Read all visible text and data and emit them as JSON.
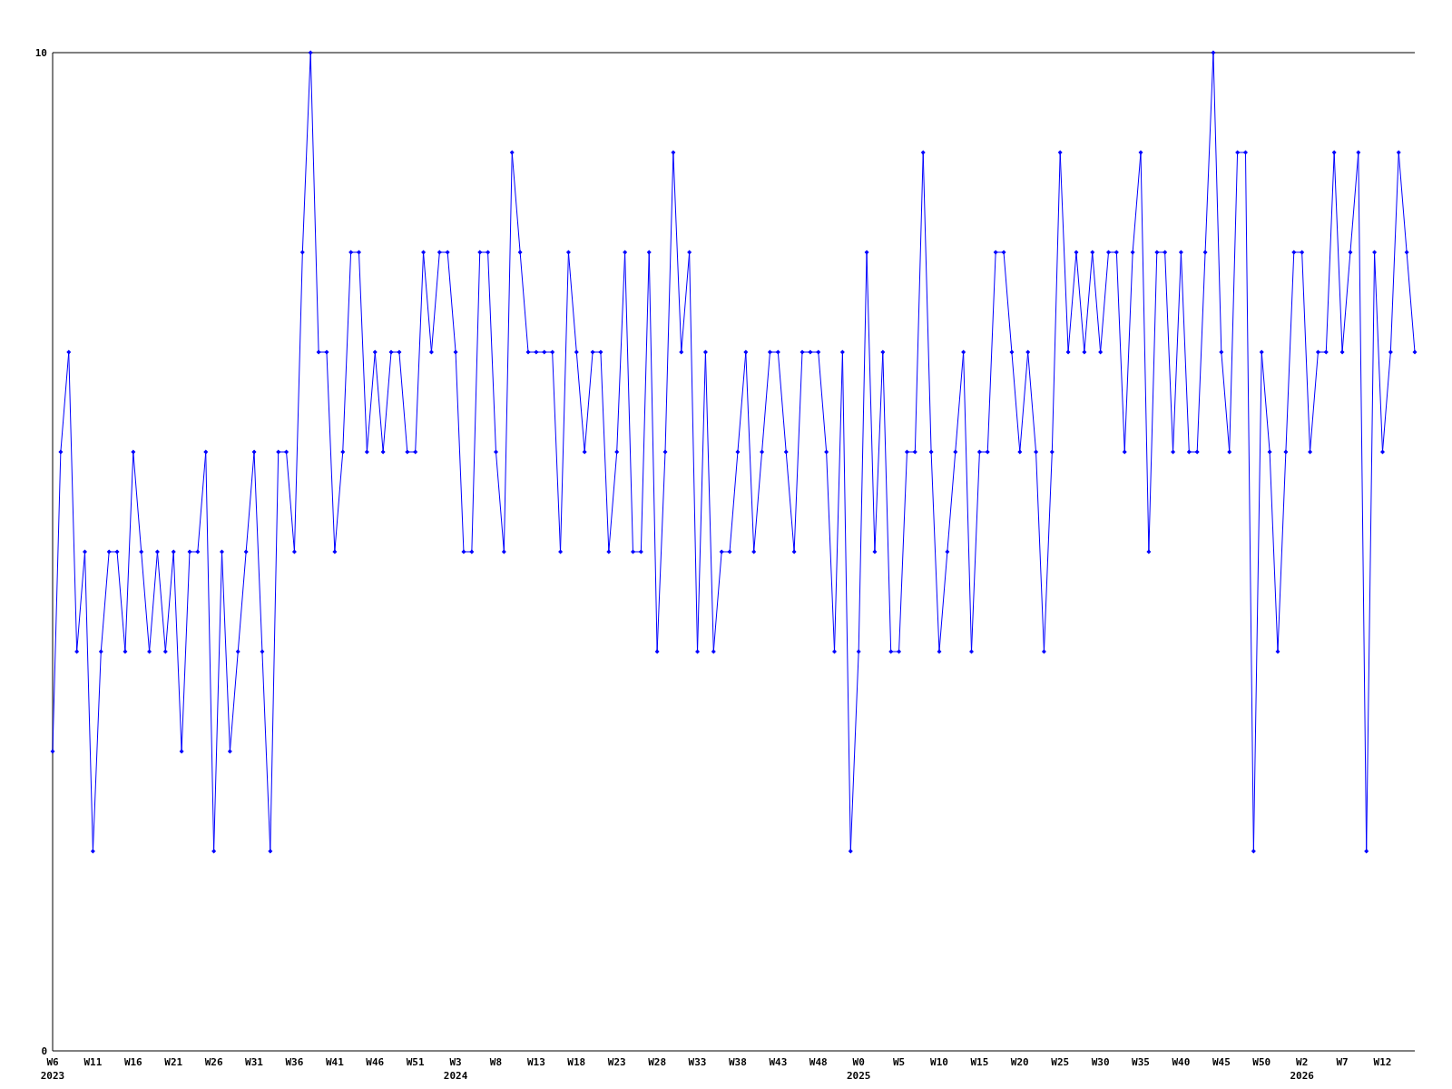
{
  "chart_data": {
    "type": "line",
    "categories": [
      "W6\n2023",
      null,
      null,
      null,
      null,
      "W11",
      null,
      null,
      null,
      null,
      "W16",
      null,
      null,
      null,
      null,
      "W21",
      null,
      null,
      null,
      null,
      "W26",
      null,
      null,
      null,
      null,
      "W31",
      null,
      null,
      null,
      null,
      "W36",
      null,
      null,
      null,
      null,
      "W41",
      null,
      null,
      null,
      null,
      "W46",
      null,
      null,
      null,
      null,
      "W51",
      null,
      null,
      null,
      null,
      "W3\n2024",
      null,
      null,
      null,
      null,
      "W8",
      null,
      null,
      null,
      null,
      "W13",
      null,
      null,
      null,
      null,
      "W18",
      null,
      null,
      null,
      null,
      "W23",
      null,
      null,
      null,
      null,
      "W28",
      null,
      null,
      null,
      null,
      "W33",
      null,
      null,
      null,
      null,
      "W38",
      null,
      null,
      null,
      null,
      "W43",
      null,
      null,
      null,
      null,
      "W48",
      null,
      null,
      null,
      null,
      "W0\n2025",
      null,
      null,
      null,
      null,
      "W5",
      null,
      null,
      null,
      null,
      "W10",
      null,
      null,
      null,
      null,
      "W15",
      null,
      null,
      null,
      null,
      "W20",
      null,
      null,
      null,
      null,
      "W25",
      null,
      null,
      null,
      null,
      "W30",
      null,
      null,
      null,
      null,
      "W35",
      null,
      null,
      null,
      null,
      "W40",
      null,
      null,
      null,
      null,
      "W45",
      null,
      null,
      null,
      null,
      "W50",
      null,
      null,
      null,
      null,
      "W2\n2026",
      null,
      null,
      null,
      null,
      "W7",
      null,
      null,
      null,
      null,
      "W12",
      null,
      null,
      null,
      null
    ],
    "series": [
      {
        "color": "#0000ff",
        "values": [
          3,
          6,
          7,
          4,
          5,
          2,
          4,
          5,
          5,
          4,
          6,
          5,
          4,
          5,
          4,
          5,
          3,
          5,
          5,
          6,
          2,
          5,
          3,
          4,
          5,
          6,
          4,
          2,
          6,
          6,
          5,
          8,
          10,
          7,
          7,
          5,
          6,
          8,
          8,
          6,
          7,
          6,
          7,
          7,
          6,
          6,
          8,
          7,
          8,
          8,
          7,
          5,
          5,
          8,
          8,
          6,
          5,
          9,
          8,
          7,
          7,
          7,
          7,
          5,
          8,
          7,
          6,
          7,
          7,
          5,
          6,
          8,
          5,
          5,
          8,
          4,
          6,
          9,
          7,
          8,
          4,
          7,
          4,
          5,
          5,
          6,
          7,
          5,
          6,
          7,
          7,
          6,
          5,
          7,
          7,
          7,
          6,
          4,
          7,
          2,
          4,
          8,
          5,
          7,
          4,
          4,
          6,
          6,
          9,
          6,
          4,
          5,
          6,
          7,
          4,
          6,
          6,
          8,
          8,
          7,
          6,
          7,
          6,
          4,
          6,
          9,
          7,
          8,
          7,
          8,
          7,
          8,
          8,
          6,
          8,
          9,
          5,
          8,
          8,
          6,
          8,
          6,
          6,
          8,
          10,
          7,
          6,
          9,
          9,
          2,
          7,
          6,
          4,
          6,
          8,
          8,
          6,
          7,
          7,
          9,
          7,
          8,
          9,
          2,
          8,
          6,
          7,
          9,
          8,
          7
        ]
      }
    ],
    "ylim": [
      0,
      10
    ],
    "yticks": [
      0,
      10
    ],
    "marker": "diamond",
    "line_style": "solid"
  }
}
